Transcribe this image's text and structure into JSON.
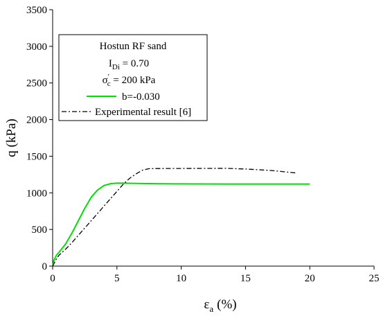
{
  "chart_data": {
    "type": "line",
    "xlabel": {
      "main": "ε",
      "sub": "a",
      "unit": "(%)"
    },
    "ylabel": "q (kPa)",
    "xlim": [
      0,
      25
    ],
    "ylim": [
      0,
      3500
    ],
    "xticks": [
      0,
      5,
      10,
      15,
      20,
      25
    ],
    "yticks": [
      0,
      500,
      1000,
      1500,
      2000,
      2500,
      3000,
      3500
    ],
    "grid": false,
    "legend_position": "top-left",
    "legend": {
      "title": "Hostun RF sand",
      "line2": {
        "main": "I",
        "sub": "Di",
        "rest": " = 0.70"
      },
      "line3": {
        "main": "σ",
        "sup": "'",
        "sub": "c",
        "rest": " = 200 kPa"
      }
    },
    "series": [
      {
        "name": "b=-0.030",
        "color": "#00e000",
        "dash": "solid",
        "x": [
          0,
          0.1,
          0.3,
          0.5,
          1.0,
          1.5,
          2.0,
          2.5,
          3.0,
          3.5,
          4.0,
          4.5,
          5.0,
          5.5,
          6.0,
          7.0,
          8.0,
          10.0,
          12.0,
          14.0,
          16.0,
          18.0,
          20.0
        ],
        "y": [
          0,
          80,
          150,
          190,
          300,
          450,
          620,
          790,
          940,
          1040,
          1100,
          1125,
          1132,
          1133,
          1130,
          1127,
          1125,
          1122,
          1121,
          1120,
          1120,
          1120,
          1120
        ]
      },
      {
        "name": "Experimental result [6]",
        "color": "#000000",
        "dash": "dashdot",
        "x": [
          0,
          0.3,
          0.5,
          1.0,
          1.5,
          2.0,
          3.0,
          4.0,
          5.0,
          5.5,
          6.0,
          6.5,
          7.0,
          7.5,
          8.0,
          10.0,
          12.0,
          13.5,
          15.0,
          17.0,
          19.0
        ],
        "y": [
          0,
          100,
          150,
          230,
          320,
          420,
          620,
          820,
          1020,
          1120,
          1200,
          1260,
          1310,
          1330,
          1332,
          1333,
          1334,
          1335,
          1325,
          1305,
          1270
        ]
      }
    ]
  }
}
